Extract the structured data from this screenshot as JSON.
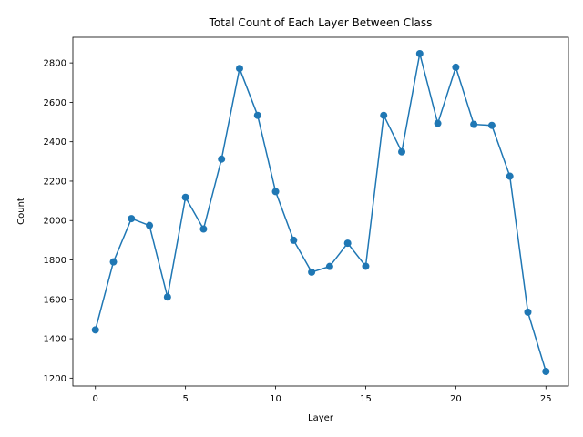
{
  "chart_data": {
    "type": "line",
    "title": "Total Count of Each Layer Between Class",
    "xlabel": "Layer",
    "ylabel": "Count",
    "xlim": [
      -1.25,
      26.25
    ],
    "ylim": [
      1160,
      2930
    ],
    "xticks": [
      0,
      5,
      10,
      15,
      20,
      25
    ],
    "yticks": [
      1200,
      1400,
      1600,
      1800,
      2000,
      2200,
      2400,
      2600,
      2800
    ],
    "grid": false,
    "series": [
      {
        "color": "#1f77b4",
        "marker": "circle",
        "x": [
          0,
          1,
          2,
          3,
          4,
          5,
          6,
          7,
          8,
          9,
          10,
          11,
          12,
          13,
          14,
          15,
          16,
          17,
          18,
          19,
          20,
          21,
          22,
          23,
          24,
          25
        ],
        "values": [
          1445,
          1790,
          2010,
          1975,
          1612,
          2118,
          1957,
          2312,
          2772,
          2534,
          2147,
          1900,
          1738,
          1767,
          1885,
          1768,
          2534,
          2349,
          2847,
          2493,
          2778,
          2488,
          2483,
          2225,
          1535,
          1234
        ]
      }
    ]
  }
}
